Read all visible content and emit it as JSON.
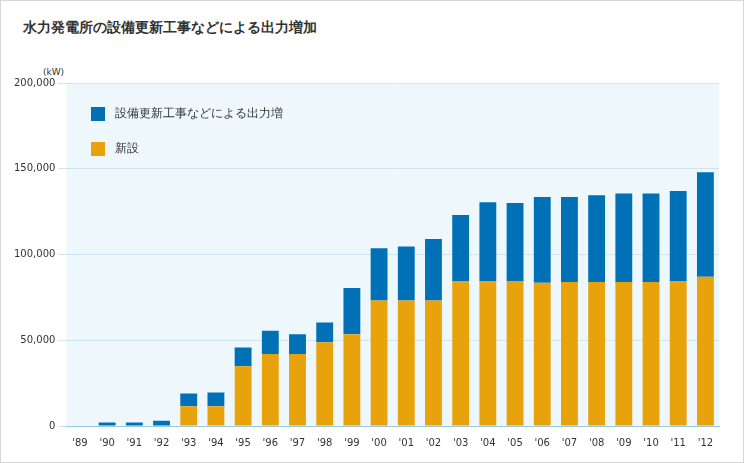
{
  "chart_data": {
    "type": "bar",
    "title": "水力発電所の設備更新工事などによる出力増加",
    "ylabel": "(kW)",
    "categories": [
      "'89",
      "'90",
      "'91",
      "'92",
      "'93",
      "'94",
      "'95",
      "'96",
      "'97",
      "'98",
      "'99",
      "'00",
      "'01",
      "'02",
      "'03",
      "'04",
      "'05",
      "'06",
      "'07",
      "'08",
      "'09",
      "'10",
      "'11",
      "'12"
    ],
    "series": [
      {
        "name": "設備更新工事などによる出力増",
        "color": "#0071b7",
        "values": [
          0,
          2000,
          2000,
          3000,
          7500,
          8000,
          11000,
          13500,
          11500,
          11500,
          27000,
          30500,
          31500,
          35800,
          38800,
          46300,
          45800,
          50000,
          49500,
          50500,
          51500,
          51500,
          52500,
          61000
        ]
      },
      {
        "name": "新設",
        "color": "#e8a20c",
        "values": [
          0,
          0,
          0,
          0,
          11500,
          11500,
          34800,
          42000,
          42000,
          48800,
          53500,
          73200,
          73200,
          73200,
          84200,
          84200,
          84200,
          83500,
          84000,
          84000,
          84000,
          84000,
          84500,
          87000
        ]
      }
    ],
    "stacked": true,
    "ylim": [
      0,
      200000
    ],
    "yticks": [
      0,
      {
        "value": 50000,
        "label": "50,000"
      },
      {
        "value": 100000,
        "label": "100,000"
      },
      {
        "value": 150000,
        "label": "150,000"
      },
      {
        "value": 200000,
        "label": "200,000"
      }
    ],
    "grid": true,
    "legend": "upper left"
  }
}
